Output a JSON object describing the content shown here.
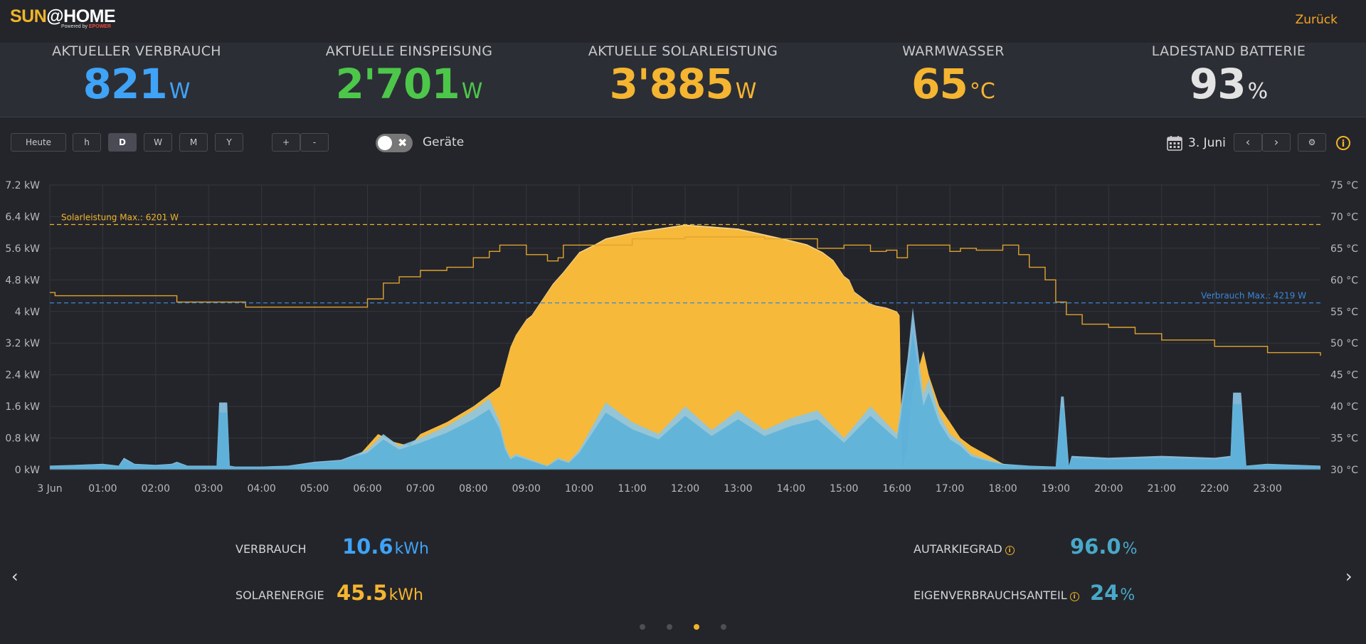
{
  "header": {
    "logo_sun": "SUN",
    "logo_home": "@HOME",
    "logo_powered": "Powered by",
    "logo_brand": "EPOWER",
    "back_label": "Zurück"
  },
  "kpis": [
    {
      "label": "AKTUELLER VERBRAUCH",
      "value": "821",
      "unit": "W",
      "color": "#3fa3f7"
    },
    {
      "label": "AKTUELLE EINSPEISUNG",
      "value": "2'701",
      "unit": "W",
      "color": "#4cc74a"
    },
    {
      "label": "AKTUELLE SOLARLEISTUNG",
      "value": "3'885",
      "unit": "W",
      "color": "#f5b531"
    },
    {
      "label": "WARMWASSER",
      "value": "65",
      "unit": "°C",
      "color": "#f5b531"
    },
    {
      "label": "LADESTAND BATTERIE",
      "value": "93",
      "unit": "%",
      "color": "#e3e3e3"
    }
  ],
  "controls": {
    "today": "Heute",
    "periods": [
      "h",
      "D",
      "W",
      "M",
      "Y"
    ],
    "active_period": "D",
    "zoom_in": "+",
    "zoom_out": "-",
    "toggle_label": "Geräte",
    "toggle_icon": "close-x-icon",
    "date": "3. Juni",
    "prev": "‹",
    "next": "›",
    "settings_icon": "gear-icon",
    "info_icon": "info-icon",
    "info_glyph": "i"
  },
  "chart_data": {
    "type": "area",
    "x_ticks": [
      "3 Jun",
      "01:00",
      "02:00",
      "03:00",
      "04:00",
      "05:00",
      "06:00",
      "07:00",
      "08:00",
      "09:00",
      "10:00",
      "11:00",
      "12:00",
      "13:00",
      "14:00",
      "15:00",
      "16:00",
      "17:00",
      "18:00",
      "19:00",
      "20:00",
      "21:00",
      "22:00",
      "23:00"
    ],
    "y_left_ticks": [
      "0 kW",
      "0.8 kW",
      "1.6 kW",
      "2.4 kW",
      "3.2 kW",
      "4 kW",
      "4.8 kW",
      "5.6 kW",
      "6.4 kW",
      "7.2 kW"
    ],
    "y_right_ticks": [
      "30 °C",
      "35 °C",
      "40 °C",
      "45 °C",
      "50 °C",
      "55 °C",
      "60 °C",
      "65 °C",
      "70 °C",
      "75 °C"
    ],
    "y_left_range": [
      0,
      7.2
    ],
    "y_right_range": [
      30,
      75
    ],
    "x_range_hours": [
      0,
      24
    ],
    "annotations": {
      "solar_max_label": "Solarleistung Max.: 6201 W",
      "solar_max_kw": 6.201,
      "consumption_max_label": "Verbrauch Max.: 4219 W",
      "consumption_max_kw": 4.219
    },
    "colors": {
      "solar": "#f6b93a",
      "solar_light": "#fcdd9a",
      "consumption": "#5ab0d9",
      "consumption_light": "#8cc7e8",
      "water": "#e0a32e",
      "solar_max_line": "#f0b429",
      "consumption_max_line": "#3b86d8"
    },
    "series": [
      {
        "key": "solar",
        "x": [
          0,
          4,
          4.5,
          5,
          5.5,
          5.8,
          6,
          6.2,
          6.5,
          6.8,
          7,
          7.5,
          8,
          8.3,
          8.5,
          8.6,
          8.7,
          8.8,
          9,
          9.1,
          9.3,
          9.5,
          9.7,
          10,
          10.3,
          10.5,
          11,
          11.5,
          12,
          12.5,
          13,
          13.5,
          14,
          14.3,
          14.6,
          14.8,
          15,
          15.1,
          15.2,
          15.3,
          15.4,
          15.5,
          15.6,
          15.8,
          16,
          16.05,
          16.1,
          16.2,
          16.3,
          16.5,
          16.6,
          16.8,
          17,
          17.2,
          17.4,
          17.6,
          17.8,
          18,
          18.5,
          19,
          24
        ],
        "y": [
          0,
          0,
          0.02,
          0.1,
          0.2,
          0.3,
          0.6,
          0.9,
          0.7,
          0.6,
          0.9,
          1.2,
          1.6,
          1.9,
          2.1,
          2.6,
          3.1,
          3.4,
          3.8,
          3.9,
          4.3,
          4.7,
          5.0,
          5.5,
          5.7,
          5.85,
          6.0,
          6.1,
          6.2,
          6.15,
          6.1,
          5.95,
          5.8,
          5.7,
          5.5,
          5.3,
          4.9,
          4.8,
          4.5,
          4.4,
          4.3,
          4.2,
          4.15,
          4.1,
          4.0,
          3.9,
          0.0,
          0.6,
          2.0,
          3.0,
          2.4,
          1.6,
          1.2,
          0.8,
          0.6,
          0.45,
          0.3,
          0.15,
          0.05,
          0,
          0
        ]
      },
      {
        "key": "consumption",
        "x": [
          0,
          0.5,
          1,
          1.3,
          1.4,
          1.6,
          2,
          2.3,
          2.4,
          2.6,
          3.15,
          3.2,
          3.35,
          3.4,
          3.5,
          4,
          4.5,
          5,
          5.5,
          6,
          6.3,
          6.6,
          7,
          7.5,
          8,
          8.3,
          8.5,
          8.6,
          8.7,
          8.8,
          9,
          9.2,
          9.4,
          9.6,
          9.8,
          10,
          10.5,
          11,
          11.5,
          12,
          12.5,
          13,
          13.5,
          14,
          14.5,
          15,
          15.5,
          16,
          16.2,
          16.3,
          16.4,
          16.5,
          16.6,
          16.8,
          17,
          17.2,
          17.4,
          17.6,
          18,
          18.5,
          19,
          19.1,
          19.15,
          19.25,
          19.3,
          20,
          21,
          22,
          22.3,
          22.35,
          22.5,
          22.6,
          23,
          24
        ],
        "y": [
          0.1,
          0.12,
          0.15,
          0.1,
          0.3,
          0.15,
          0.12,
          0.15,
          0.2,
          0.1,
          0.1,
          1.7,
          1.7,
          0.1,
          0.08,
          0.08,
          0.1,
          0.2,
          0.25,
          0.5,
          0.9,
          0.6,
          0.8,
          1.1,
          1.5,
          1.8,
          1.2,
          0.6,
          0.3,
          0.4,
          0.3,
          0.2,
          0.1,
          0.3,
          0.2,
          0.5,
          1.7,
          1.2,
          0.9,
          1.6,
          1.0,
          1.5,
          1.0,
          1.3,
          1.5,
          0.8,
          1.6,
          0.9,
          2.8,
          4.1,
          3.0,
          1.9,
          2.3,
          1.4,
          0.9,
          0.7,
          0.4,
          0.3,
          0.15,
          0.1,
          0.08,
          1.85,
          1.85,
          0.1,
          0.35,
          0.3,
          0.35,
          0.3,
          0.35,
          1.95,
          1.95,
          0.1,
          0.15,
          0.1
        ]
      },
      {
        "key": "water_temperature",
        "x": [
          0,
          0.1,
          1.7,
          2.4,
          3.6,
          3.7,
          5.8,
          6,
          6.3,
          6.6,
          7,
          7.5,
          8,
          8.3,
          8.5,
          8.7,
          9,
          9.4,
          9.6,
          9.7,
          10.5,
          11,
          12,
          12.5,
          13,
          13.5,
          14.5,
          15,
          15.5,
          15.8,
          16,
          16.2,
          16.5,
          17,
          17.2,
          17.5,
          18,
          18.3,
          18.5,
          18.8,
          19,
          19.2,
          19.5,
          20,
          20.5,
          21,
          22,
          23,
          24
        ],
        "y": [
          58,
          57.5,
          57.5,
          56.5,
          56.5,
          55.7,
          55.7,
          57,
          59.5,
          60.5,
          61.5,
          62,
          63.5,
          64.5,
          65.5,
          65.5,
          64,
          63,
          63.5,
          65.5,
          65.5,
          66.5,
          66.8,
          66.8,
          66.8,
          66.5,
          65,
          65.5,
          64.5,
          64.7,
          63.5,
          65.5,
          65.5,
          64.5,
          65,
          64.7,
          65.5,
          64,
          62,
          60,
          56.5,
          54.5,
          53,
          52.5,
          51.5,
          50.5,
          49.5,
          48.5,
          48
        ]
      }
    ]
  },
  "summary": {
    "consumption": {
      "label": "VERBRAUCH",
      "value": "10.6",
      "unit": "kWh",
      "color": "#3fa3f7"
    },
    "solar": {
      "label": "SOLARENERGIE",
      "value": "45.5",
      "unit": "kWh",
      "color": "#f5b531"
    },
    "autarky": {
      "label": "AUTARKIEGRAD",
      "value": "96.0",
      "unit": "%",
      "color": "#48a8c8",
      "icon": "info-icon"
    },
    "self_consumption": {
      "label": "EIGENVERBRAUCHSANTEIL",
      "value": "24",
      "unit": "%",
      "color": "#48a8c8",
      "icon": "info-icon"
    },
    "info_glyph": "i",
    "prev_arrow": "‹",
    "next_arrow": "›",
    "pages": 4,
    "active_page": 3
  }
}
